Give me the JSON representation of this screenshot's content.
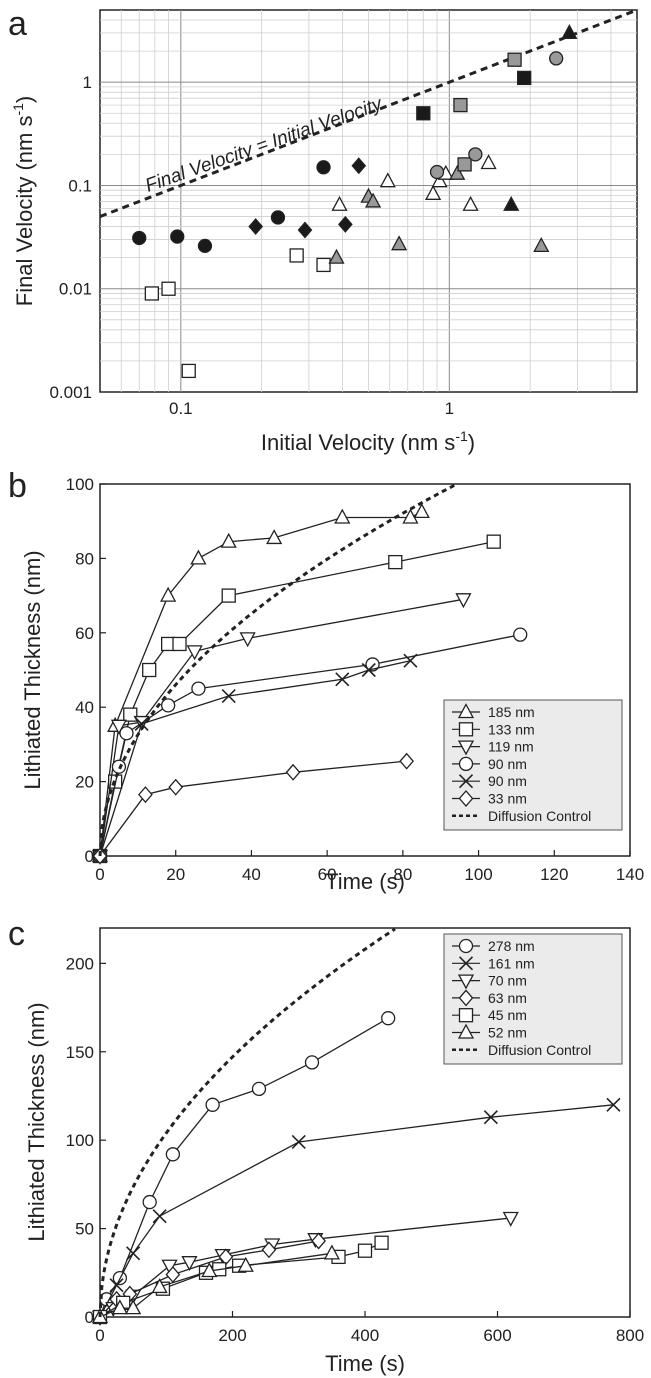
{
  "chart_data": [
    {
      "panel": "a",
      "type": "scatter",
      "xlabel": "Initial Velocity (nm s",
      "xlabel_sup": "-1",
      "xlabel_end": ")",
      "ylabel": "Final Velocity (nm s",
      "ylabel_sup": "-1",
      "ylabel_end": ")",
      "xscale": "log",
      "yscale": "log",
      "xlim": [
        0.05,
        5
      ],
      "ylim": [
        0.001,
        5
      ],
      "xticks": [
        0.1,
        1
      ],
      "xticklabels": [
        "0.1",
        "1"
      ],
      "yticks": [
        0.001,
        0.01,
        0.1,
        1
      ],
      "yticklabels": [
        "0.001",
        "0.01",
        "0.1",
        "1"
      ],
      "grid": true,
      "annotation": "Final Velocity = Initial Velocity",
      "reference_line": [
        [
          0.05,
          0.05
        ],
        [
          5,
          5
        ]
      ],
      "series": [
        {
          "marker": "circle",
          "fill": "#1a1a1a",
          "points": [
            [
              0.07,
              0.031
            ],
            [
              0.097,
              0.032
            ],
            [
              0.123,
              0.026
            ],
            [
              0.23,
              0.049
            ],
            [
              0.34,
              0.15
            ]
          ]
        },
        {
          "marker": "diamond",
          "fill": "#1a1a1a",
          "points": [
            [
              0.19,
              0.04
            ],
            [
              0.29,
              0.037
            ],
            [
              0.41,
              0.042
            ],
            [
              0.46,
              0.155
            ]
          ]
        },
        {
          "marker": "square",
          "fill": "#ffffff",
          "points": [
            [
              0.078,
              0.009
            ],
            [
              0.09,
              0.01
            ],
            [
              0.107,
              0.0016
            ],
            [
              0.27,
              0.021
            ],
            [
              0.34,
              0.017
            ]
          ]
        },
        {
          "marker": "triangle",
          "fill": "#ffffff",
          "points": [
            [
              0.39,
              0.065
            ],
            [
              0.59,
              0.11
            ],
            [
              0.87,
              0.083
            ],
            [
              0.92,
              0.11
            ],
            [
              0.97,
              0.13
            ],
            [
              1.2,
              0.065
            ],
            [
              1.4,
              0.165
            ]
          ]
        },
        {
          "marker": "triangle",
          "fill": "#999999",
          "points": [
            [
              0.38,
              0.02
            ],
            [
              0.5,
              0.078
            ],
            [
              0.52,
              0.07
            ],
            [
              0.65,
              0.027
            ],
            [
              1.07,
              0.13
            ],
            [
              2.2,
              0.026
            ]
          ]
        },
        {
          "marker": "triangle",
          "fill": "#1a1a1a",
          "points": [
            [
              1.7,
              0.065
            ],
            [
              2.8,
              3.0
            ]
          ]
        },
        {
          "marker": "square",
          "fill": "#1a1a1a",
          "points": [
            [
              0.8,
              0.5
            ],
            [
              1.9,
              1.1
            ]
          ]
        },
        {
          "marker": "square",
          "fill": "#999999",
          "points": [
            [
              1.1,
              0.6
            ],
            [
              1.14,
              0.16
            ],
            [
              1.75,
              1.65
            ]
          ]
        },
        {
          "marker": "circle",
          "fill": "#999999",
          "points": [
            [
              0.9,
              0.135
            ],
            [
              1.25,
              0.2
            ],
            [
              2.5,
              1.7
            ]
          ]
        }
      ]
    },
    {
      "panel": "b",
      "type": "line",
      "xlabel": "Time (s)",
      "ylabel": "Lithiated Thickness (nm)",
      "xlim": [
        0,
        140
      ],
      "ylim": [
        0,
        100
      ],
      "xticks": [
        0,
        20,
        40,
        60,
        80,
        100,
        120,
        140
      ],
      "yticks": [
        0,
        20,
        40,
        60,
        80,
        100
      ],
      "legend_placement": "lower-right",
      "series": [
        {
          "name": "185 nm",
          "marker": "triangle-up",
          "points": [
            [
              0,
              0
            ],
            [
              4,
              35
            ],
            [
              18,
              70
            ],
            [
              26,
              80
            ],
            [
              34,
              84.5
            ],
            [
              46,
              85.5
            ],
            [
              64,
              91
            ],
            [
              82,
              91
            ],
            [
              85,
              92.5
            ]
          ]
        },
        {
          "name": "133 nm",
          "marker": "square",
          "points": [
            [
              0,
              0
            ],
            [
              4,
              20
            ],
            [
              8,
              38
            ],
            [
              13,
              50
            ],
            [
              18,
              57
            ],
            [
              21,
              57
            ],
            [
              34,
              70
            ],
            [
              78,
              79
            ],
            [
              104,
              84.5
            ]
          ]
        },
        {
          "name": "119 nm",
          "marker": "triangle-down",
          "points": [
            [
              0,
              0
            ],
            [
              5,
              35
            ],
            [
              11,
              36
            ],
            [
              25,
              55
            ],
            [
              39,
              58.5
            ],
            [
              96,
              69
            ]
          ]
        },
        {
          "name": "90 nm",
          "marker": "circle",
          "points": [
            [
              0,
              0
            ],
            [
              5,
              24
            ],
            [
              7,
              33
            ],
            [
              18,
              40.5
            ],
            [
              26,
              45
            ],
            [
              72,
              51.5
            ],
            [
              111,
              59.5
            ]
          ]
        },
        {
          "name": "90 nm",
          "marker": "x",
          "points": [
            [
              0,
              0
            ],
            [
              11,
              35.5
            ],
            [
              34,
              43
            ],
            [
              64,
              47.5
            ],
            [
              71,
              50
            ],
            [
              82,
              52.5
            ]
          ]
        },
        {
          "name": "33 nm",
          "marker": "diamond",
          "points": [
            [
              0,
              0
            ],
            [
              12,
              16.5
            ],
            [
              20,
              18.5
            ],
            [
              51,
              22.5
            ],
            [
              81,
              25.5
            ]
          ]
        },
        {
          "name": "Diffusion Control",
          "dashed": true,
          "k": 10.3
        }
      ]
    },
    {
      "panel": "c",
      "type": "line",
      "xlabel": "Time (s)",
      "ylabel": "Lithiated Thickness (nm)",
      "xlim": [
        0,
        800
      ],
      "ylim": [
        0,
        220
      ],
      "xticks": [
        0,
        200,
        400,
        600,
        800
      ],
      "yticks": [
        0,
        50,
        100,
        150,
        200
      ],
      "legend_placement": "upper-right",
      "series": [
        {
          "name": "278 nm",
          "marker": "circle",
          "points": [
            [
              0,
              0
            ],
            [
              10,
              10
            ],
            [
              30,
              22
            ],
            [
              75,
              65
            ],
            [
              110,
              92
            ],
            [
              170,
              120
            ],
            [
              240,
              129
            ],
            [
              320,
              144
            ],
            [
              435,
              169
            ]
          ]
        },
        {
          "name": "161 nm",
          "marker": "x",
          "points": [
            [
              0,
              0
            ],
            [
              25,
              18
            ],
            [
              50,
              36
            ],
            [
              90,
              57
            ],
            [
              300,
              99
            ],
            [
              590,
              113
            ],
            [
              775,
              120
            ]
          ]
        },
        {
          "name": "70 nm",
          "marker": "triangle-down",
          "points": [
            [
              0,
              0
            ],
            [
              20,
              5
            ],
            [
              50,
              12
            ],
            [
              105,
              29
            ],
            [
              135,
              31
            ],
            [
              185,
              35
            ],
            [
              260,
              41
            ],
            [
              325,
              44
            ],
            [
              620,
              56
            ]
          ]
        },
        {
          "name": "63 nm",
          "marker": "diamond",
          "points": [
            [
              0,
              0
            ],
            [
              25,
              10
            ],
            [
              45,
              13
            ],
            [
              110,
              24
            ],
            [
              190,
              34
            ],
            [
              255,
              38
            ],
            [
              330,
              43
            ]
          ]
        },
        {
          "name": "45 nm",
          "marker": "square",
          "points": [
            [
              0,
              0
            ],
            [
              35,
              8
            ],
            [
              95,
              16
            ],
            [
              160,
              25
            ],
            [
              180,
              27
            ],
            [
              210,
              29
            ],
            [
              360,
              34
            ],
            [
              400,
              37.5
            ],
            [
              425,
              42
            ]
          ]
        },
        {
          "name": "52 nm",
          "marker": "triangle-up",
          "points": [
            [
              0,
              0
            ],
            [
              30,
              5
            ],
            [
              50,
              5
            ],
            [
              90,
              17
            ],
            [
              165,
              26
            ],
            [
              220,
              29
            ],
            [
              350,
              36
            ]
          ]
        },
        {
          "name": "Diffusion Control",
          "dashed": true,
          "k": 10.4
        }
      ]
    }
  ]
}
